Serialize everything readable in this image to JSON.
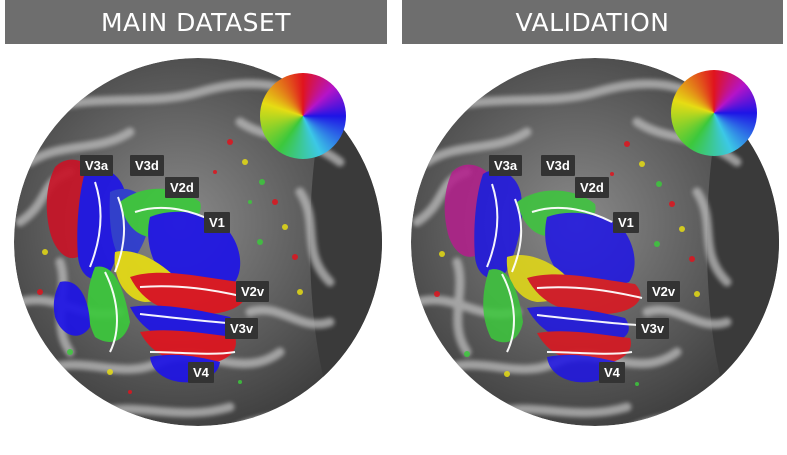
{
  "panels": [
    {
      "title": "MAIN DATASET",
      "labels": {
        "v3a": "V3a",
        "v3d": "V3d",
        "v2d": "V2d",
        "v1": "V1",
        "v2v": "V2v",
        "v3v": "V3v",
        "v4": "V4"
      }
    },
    {
      "title": "VALIDATION",
      "labels": {
        "v3a": "V3a",
        "v3d": "V3d",
        "v2d": "V2d",
        "v1": "V1",
        "v2v": "V2v",
        "v3v": "V3v",
        "v4": "V4"
      }
    }
  ],
  "legend": {
    "type": "polar-angle-color-wheel"
  },
  "colors": {
    "background": "#ffffff",
    "title_bar": "#6e6e6e",
    "title_text": "#ffffff",
    "label_box": "#333333",
    "cortex_base": "#5a5a5a",
    "map_red": "#e0141e",
    "map_blue": "#1e14e6",
    "map_green": "#3cc83c",
    "map_yellow": "#e6dc14",
    "boundary": "#ffffff"
  }
}
